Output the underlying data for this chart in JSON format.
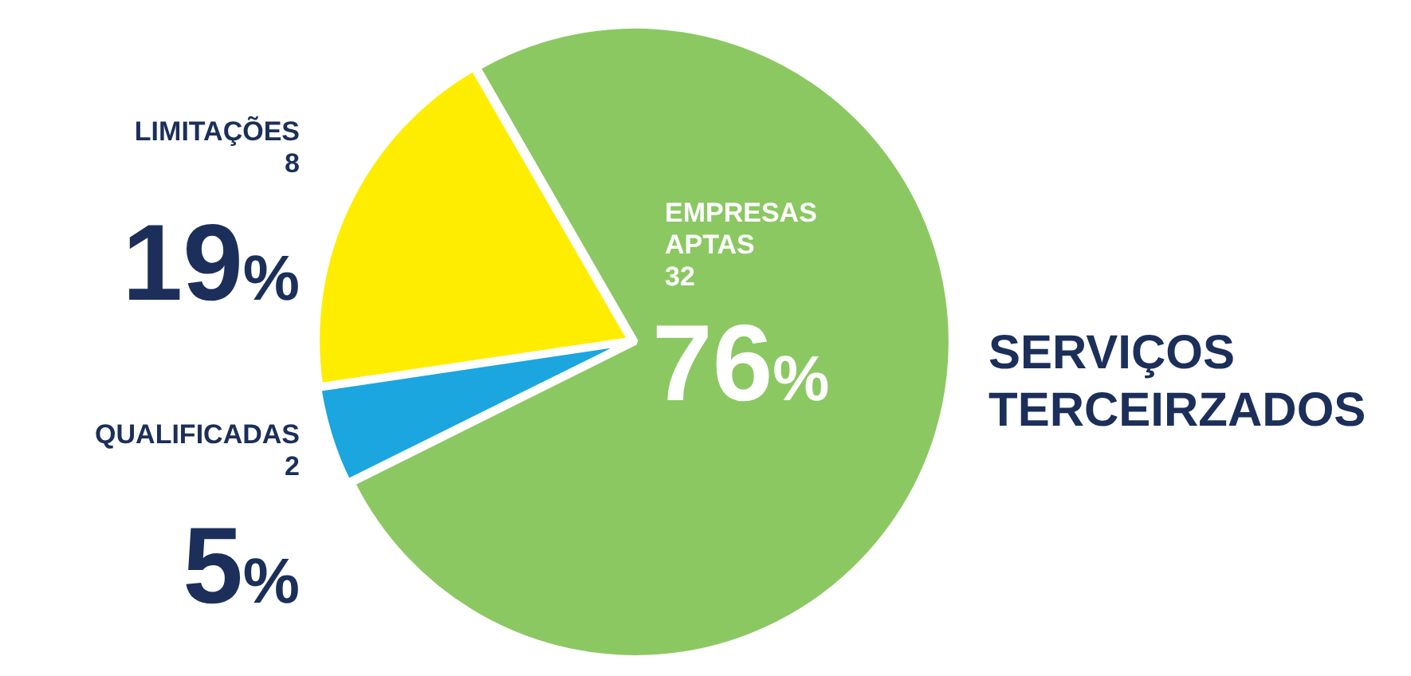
{
  "chart_data": {
    "type": "pie",
    "title": "SERVIÇOS TERCEIRZADOS",
    "categories": [
      "EMPRESAS APTAS",
      "QUALIFICADAS",
      "LIMITAÇÕES"
    ],
    "values": [
      76,
      5,
      19
    ],
    "value_labels": [
      "76%",
      "5%",
      "19%"
    ],
    "annotations": [
      "32",
      "2",
      "8"
    ],
    "colors": [
      "#8bc862",
      "#1ba6df",
      "#ffed00"
    ]
  }
}
